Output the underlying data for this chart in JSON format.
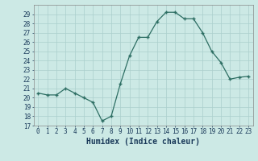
{
  "x": [
    0,
    1,
    2,
    3,
    4,
    5,
    6,
    7,
    8,
    9,
    10,
    11,
    12,
    13,
    14,
    15,
    16,
    17,
    18,
    19,
    20,
    21,
    22,
    23
  ],
  "y": [
    20.5,
    20.3,
    20.3,
    21.0,
    20.5,
    20.0,
    19.5,
    17.5,
    18.0,
    21.5,
    24.5,
    26.5,
    26.5,
    28.2,
    29.2,
    29.2,
    28.5,
    28.5,
    27.0,
    25.0,
    23.8,
    22.0,
    22.2,
    22.3
  ],
  "line_color": "#2d6e63",
  "marker": "+",
  "marker_size": 3.5,
  "bg_color": "#cce9e5",
  "grid_color": "#aacfcc",
  "xlabel": "Humidex (Indice chaleur)",
  "ylim": [
    17,
    30
  ],
  "xlim": [
    -0.5,
    23.5
  ],
  "yticks": [
    17,
    18,
    19,
    20,
    21,
    22,
    23,
    24,
    25,
    26,
    27,
    28,
    29
  ],
  "xticks": [
    0,
    1,
    2,
    3,
    4,
    5,
    6,
    7,
    8,
    9,
    10,
    11,
    12,
    13,
    14,
    15,
    16,
    17,
    18,
    19,
    20,
    21,
    22,
    23
  ],
  "tick_fontsize": 5.5,
  "xlabel_fontsize": 7.0,
  "linewidth": 0.9
}
